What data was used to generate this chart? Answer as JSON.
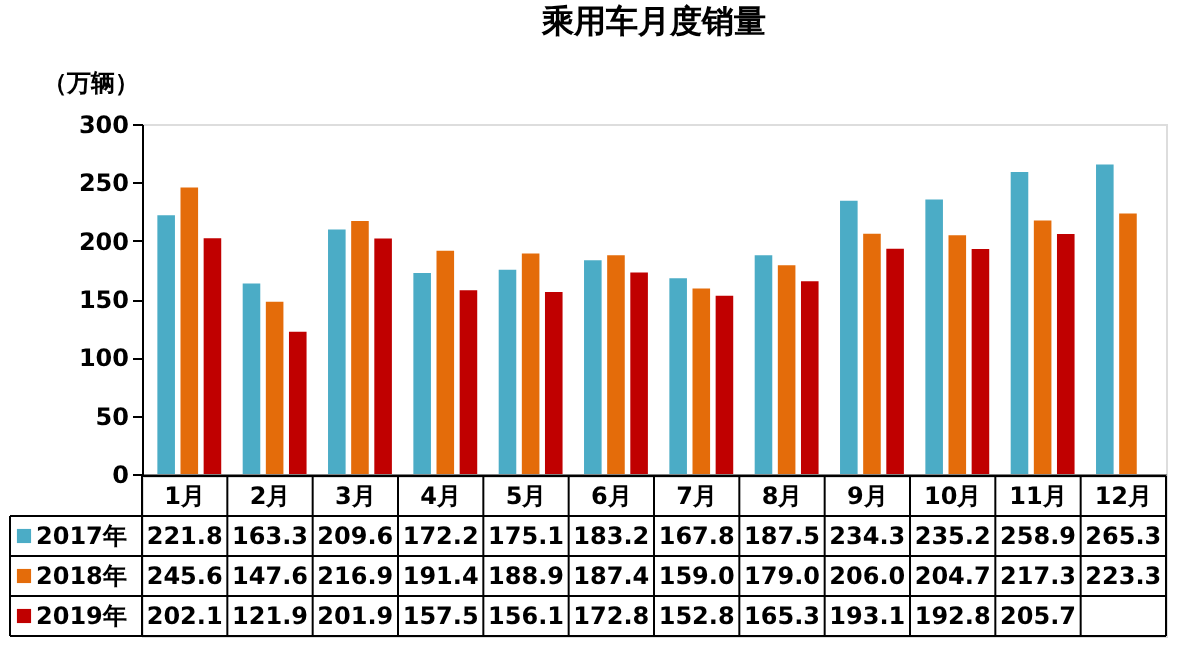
{
  "chart_data": {
    "type": "bar",
    "title": "乘用车月度销量",
    "ylabel": "（万辆）",
    "categories": [
      "1月",
      "2月",
      "3月",
      "4月",
      "5月",
      "6月",
      "7月",
      "8月",
      "9月",
      "10月",
      "11月",
      "12月"
    ],
    "series": [
      {
        "name": "2017年",
        "color": "#4bacc6",
        "values": [
          221.8,
          163.3,
          209.6,
          172.2,
          175.1,
          183.2,
          167.8,
          187.5,
          234.3,
          235.2,
          258.9,
          265.3
        ],
        "value_labels": [
          "221.8",
          "163.3",
          "209.6",
          "172.2",
          "175.1",
          "183.2",
          "167.8",
          "187.5",
          "234.3",
          "235.2",
          "258.9",
          "265.3"
        ]
      },
      {
        "name": "2018年",
        "color": "#e46c0a",
        "values": [
          245.6,
          147.6,
          216.9,
          191.4,
          188.9,
          187.4,
          159.0,
          179.0,
          206.0,
          204.7,
          217.3,
          223.3
        ],
        "value_labels": [
          "245.6",
          "147.6",
          "216.9",
          "191.4",
          "188.9",
          "187.4",
          "159.0",
          "179.0",
          "206.0",
          "204.7",
          "217.3",
          "223.3"
        ]
      },
      {
        "name": "2019年",
        "color": "#c00000",
        "values": [
          202.1,
          121.9,
          201.9,
          157.5,
          156.1,
          172.8,
          152.8,
          165.3,
          193.1,
          192.8,
          205.7,
          null
        ],
        "value_labels": [
          "202.1",
          "121.9",
          "201.9",
          "157.5",
          "156.1",
          "172.8",
          "152.8",
          "165.3",
          "193.1",
          "192.8",
          "205.7",
          null
        ]
      }
    ],
    "ylim": [
      0,
      300
    ],
    "yticks": [
      0,
      50,
      100,
      150,
      200,
      250,
      300
    ],
    "legend": "bottom left"
  }
}
